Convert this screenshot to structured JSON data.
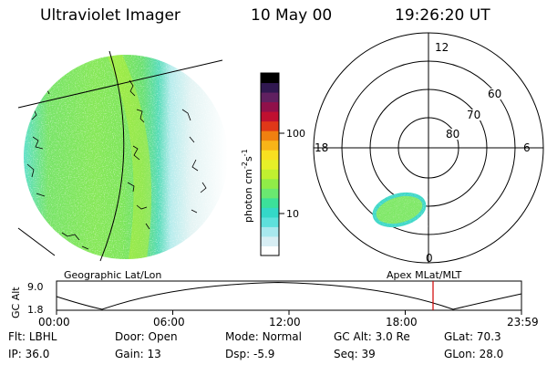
{
  "header": {
    "instrument": "Ultraviolet Imager",
    "date": "10 May 00",
    "time": "19:26:20 UT"
  },
  "colorbar": {
    "label_main": "photon cm",
    "label_sup1": "-2",
    "label_s": "s",
    "label_sup2": "-1",
    "ticks": [
      {
        "value": 100,
        "label": "100"
      },
      {
        "value": 10,
        "label": "10"
      }
    ],
    "colors_bottom_to_top": [
      "#ffffff",
      "#d8eef4",
      "#a8e8ee",
      "#5ee0dc",
      "#34d8c8",
      "#3ce09a",
      "#6ae870",
      "#90ec48",
      "#c0f030",
      "#e6f028",
      "#f8e020",
      "#f8b418",
      "#f08010",
      "#e03818",
      "#c01030",
      "#90104a",
      "#602060",
      "#301850",
      "#000000"
    ]
  },
  "polar_plot": {
    "mlt_labels": [
      "12",
      "6",
      "0",
      "18"
    ],
    "mlat_labels": [
      "60",
      "70",
      "80"
    ]
  },
  "image_labels": {
    "left": "Geographic Lat/Lon",
    "right": "Apex MLat/MLT"
  },
  "altitude_plot": {
    "ylabel": "GC Alt",
    "yticks": [
      "9.0",
      "1.8"
    ],
    "xticks": [
      "00:00",
      "06:00",
      "12:00",
      "18:00",
      "23:59"
    ],
    "current_time_marker": "19:26",
    "marker_color": "#d00000"
  },
  "info": {
    "row1": [
      {
        "label": "Flt:",
        "value": "LBHL"
      },
      {
        "label": "Door:",
        "value": "Open"
      },
      {
        "label": "Mode:",
        "value": "Normal"
      },
      {
        "label": "GC Alt:",
        "value": "3.0 Re"
      },
      {
        "label": "GLat:",
        "value": "70.3"
      }
    ],
    "row2": [
      {
        "label": "IP:",
        "value": "36.0"
      },
      {
        "label": "Gain:",
        "value": "13"
      },
      {
        "label": "Dsp:",
        "value": "-5.9"
      },
      {
        "label": "Seq:",
        "value": "39"
      },
      {
        "label": "GLon:",
        "value": "28.0"
      }
    ]
  }
}
